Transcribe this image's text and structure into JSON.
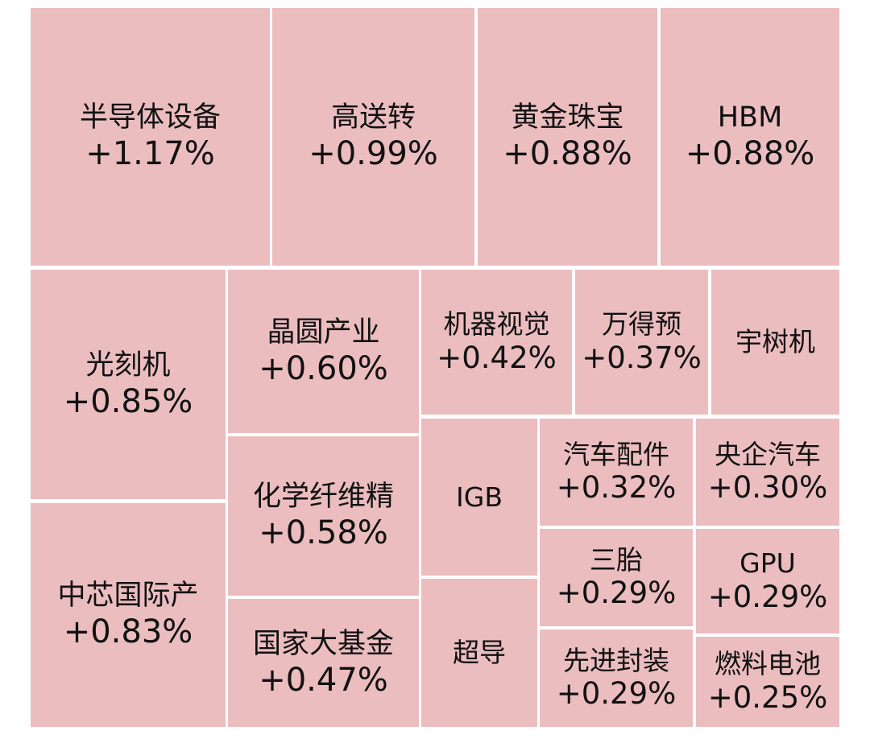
{
  "tiles": [
    {
      "name": "半导体设备",
      "change": "+1.17%"
    },
    {
      "name": "高送转",
      "change": "+0.99%"
    },
    {
      "name": "黄金珠宝",
      "change": "+0.88%"
    },
    {
      "name": "HBM",
      "change": "+0.88%"
    },
    {
      "name": "光刻机",
      "change": "+0.85%"
    },
    {
      "name": "中芯国际产",
      "change": "+0.83%"
    },
    {
      "name": "晶圆产业",
      "change": "+0.60%"
    },
    {
      "name": "化学纤维精",
      "change": "+0.58%"
    },
    {
      "name": "国家大基金",
      "change": "+0.47%"
    },
    {
      "name": "机器视觉",
      "change": "+0.42%"
    },
    {
      "name": "万得预",
      "change": "+0.37%"
    },
    {
      "name": "宇树机"
    },
    {
      "name": "IGB"
    },
    {
      "name": "超导"
    },
    {
      "name": "汽车配件",
      "change": "+0.32%"
    },
    {
      "name": "央企汽车",
      "change": "+0.30%"
    },
    {
      "name": "三胎",
      "change": "+0.29%"
    },
    {
      "name": "GPU",
      "change": "+0.29%"
    },
    {
      "name": "先进封装",
      "change": "+0.29%"
    },
    {
      "name": "燃料电池",
      "change": "+0.25%"
    }
  ]
}
